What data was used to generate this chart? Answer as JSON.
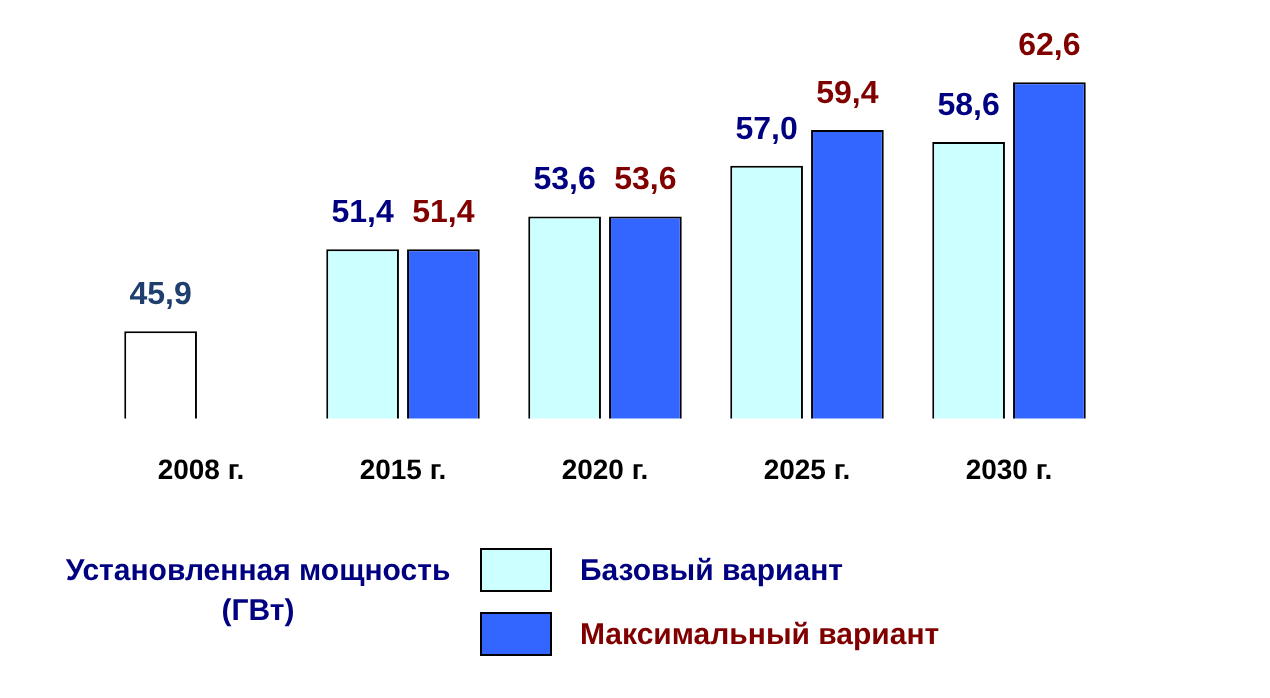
{
  "chart_data": {
    "type": "bar",
    "categories": [
      "2008 г.",
      "2015 г.",
      "2020 г.",
      "2025 г.",
      "2030 г."
    ],
    "series": [
      {
        "name": "Базовый вариант",
        "color": "#ccffff",
        "colors": [
          "#ffffff",
          "#ccffff",
          "#ccffff",
          "#ccffff",
          "#ccffff"
        ],
        "values": [
          45.9,
          51.4,
          53.6,
          57.0,
          58.6
        ],
        "value_labels": [
          "45,9",
          "51,4",
          "53,6",
          "57,0",
          "58,6"
        ]
      },
      {
        "name": "Максимальный вариант",
        "color": "#3366ff",
        "values": [
          null,
          51.4,
          53.6,
          59.4,
          62.6
        ],
        "value_labels": [
          null,
          "51,4",
          "53,6",
          "59,4",
          "62,6"
        ]
      }
    ],
    "legend_title": "Установленная мощность (ГВт)",
    "legend": "bottom",
    "grid": false
  }
}
